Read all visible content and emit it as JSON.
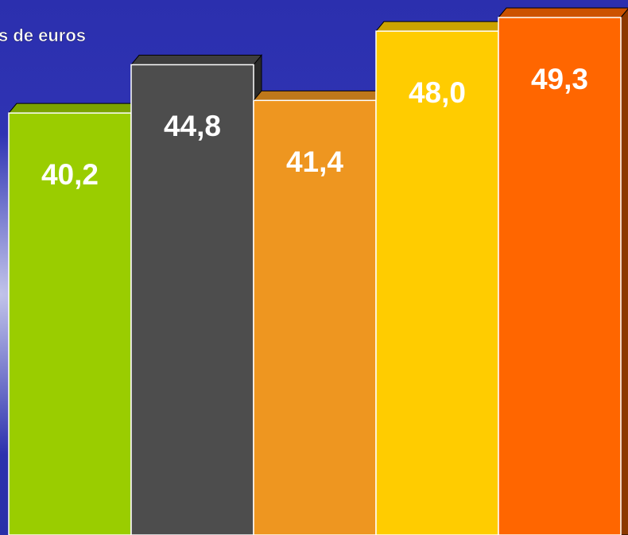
{
  "chart_data": {
    "type": "bar",
    "title": "s de euros",
    "values": [
      40.2,
      44.8,
      41.4,
      48.0,
      49.3
    ],
    "value_labels": [
      "40,2",
      "44,8",
      "41,4",
      "48,0",
      "49,3"
    ],
    "colors": [
      "#9acd00",
      "#4d4d4d",
      "#ee9620",
      "#ffcc00",
      "#ff6600"
    ]
  }
}
